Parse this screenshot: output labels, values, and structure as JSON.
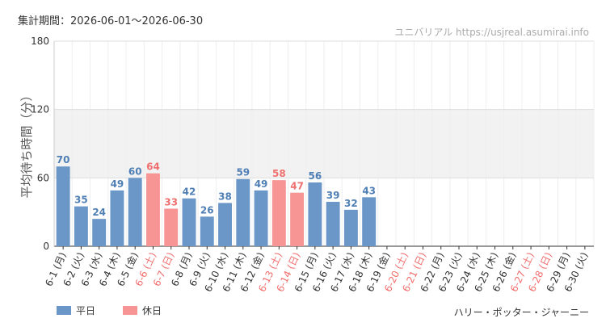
{
  "period": "集計期間：2026-06-01～2026-06-30",
  "watermark": "ユニバリアル  https://usjreal.asumirai.info",
  "attraction": "ハリー・ポッター・ジャーニー",
  "chart_data": {
    "type": "bar",
    "ylabel": "平均待ち時間（分）",
    "categories": [
      "6-1 (月)",
      "6-2 (火)",
      "6-3 (水)",
      "6-4 (木)",
      "6-5 (金)",
      "6-6 (土)",
      "6-7 (日)",
      "6-8 (月)",
      "6-9 (火)",
      "6-10 (水)",
      "6-11 (木)",
      "6-12 (金)",
      "6-13 (土)",
      "6-14 (日)",
      "6-15 (月)",
      "6-16 (火)",
      "6-17 (水)",
      "6-18 (木)",
      "6-19 (金)",
      "6-20 (土)",
      "6-21 (日)",
      "6-22 (月)",
      "6-23 (火)",
      "6-24 (水)",
      "6-25 (木)",
      "6-26 (金)",
      "6-27 (土)",
      "6-28 (日)",
      "6-29 (月)",
      "6-30 (火)"
    ],
    "category_colors": [
      "#333",
      "#333",
      "#333",
      "#333",
      "#333",
      "#f26d6d",
      "#f26d6d",
      "#333",
      "#333",
      "#333",
      "#333",
      "#333",
      "#f26d6d",
      "#f26d6d",
      "#333",
      "#333",
      "#333",
      "#333",
      "#333",
      "#f26d6d",
      "#f26d6d",
      "#333",
      "#333",
      "#333",
      "#333",
      "#333",
      "#f26d6d",
      "#f26d6d",
      "#333",
      "#333"
    ],
    "series": [
      {
        "name": "平日",
        "color": "#6b97c8",
        "label_color": "#4f7fb5",
        "values": [
          70,
          35,
          24,
          49,
          60,
          null,
          null,
          42,
          26,
          38,
          59,
          49,
          null,
          null,
          56,
          39,
          32,
          43,
          null,
          null,
          null,
          null,
          null,
          null,
          null,
          null,
          null,
          null,
          null,
          null
        ]
      },
      {
        "name": "休日",
        "color": "#f79494",
        "label_color": "#f07070",
        "values": [
          null,
          null,
          null,
          null,
          null,
          64,
          33,
          null,
          null,
          null,
          null,
          null,
          58,
          47,
          null,
          null,
          null,
          null,
          null,
          null,
          null,
          null,
          null,
          null,
          null,
          null,
          null,
          null,
          null,
          null
        ]
      }
    ],
    "ylim": [
      0,
      180
    ],
    "yticks": [
      0,
      60,
      120,
      180
    ],
    "shaded_band": [
      60,
      120
    ],
    "grid": true
  }
}
